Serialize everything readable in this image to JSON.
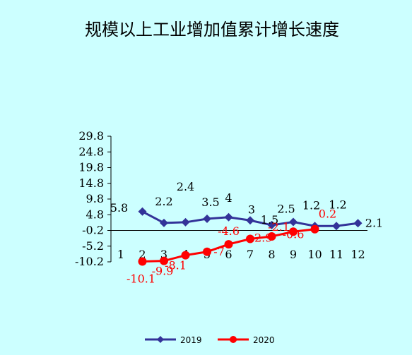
{
  "chart_data": {
    "type": "line",
    "title": "规模以上工业增加值累计增长速度",
    "categories": [
      "1",
      "2",
      "3",
      "4",
      "5",
      "6",
      "7",
      "8",
      "9",
      "10",
      "11",
      "12"
    ],
    "y_ticks": [
      "29.8",
      "24.8",
      "19.8",
      "14.8",
      "9.8",
      "4.8",
      "-0.2",
      "-5.2",
      "-10.2"
    ],
    "ylim": [
      -10.2,
      29.8
    ],
    "grid": false,
    "legend_position": "bottom",
    "series": [
      {
        "name": "2019",
        "color": "#333399",
        "marker": "diamond",
        "values": [
          null,
          5.8,
          2.2,
          2.4,
          3.5,
          4,
          3,
          1.5,
          2.5,
          1.2,
          1.2,
          2.1
        ],
        "labels": [
          "",
          "5.8",
          "2.2",
          "2.4",
          "3.5",
          "4",
          "3",
          "1.5",
          "2.5",
          "1.2",
          "1.2",
          "2.1"
        ]
      },
      {
        "name": "2020",
        "color": "#ff0000",
        "marker": "circle",
        "values": [
          null,
          -10.1,
          -9.9,
          -8.1,
          -7,
          -4.6,
          -2.9,
          -2.1,
          -0.6,
          0.2,
          null,
          null
        ],
        "labels": [
          "",
          "-10.1",
          "-9.9",
          "-8.1",
          "-7",
          "-4.6",
          "-2.9",
          "-2.1",
          "-0.6",
          "0.2",
          "",
          ""
        ]
      }
    ]
  }
}
